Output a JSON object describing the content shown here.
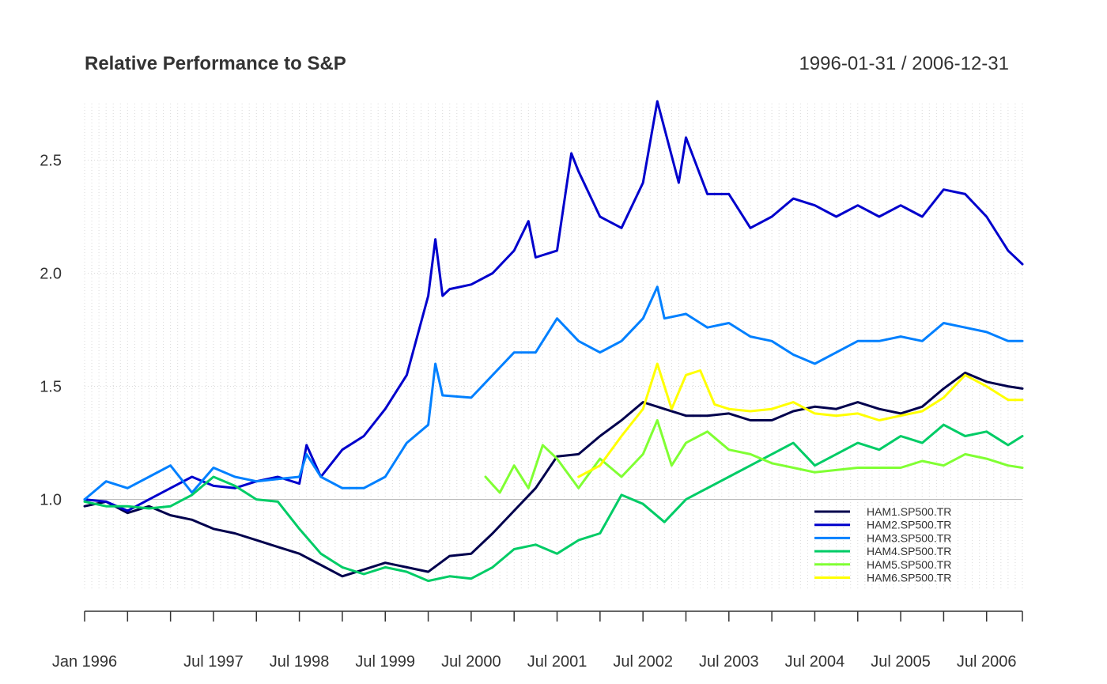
{
  "chart_data": {
    "type": "line",
    "title": "Relative Performance to S&P",
    "date_range": "1996-01-31 / 2006-12-31",
    "ylim": [
      0.6,
      2.75
    ],
    "yticks": [
      1.0,
      1.5,
      2.0,
      2.5
    ],
    "ytick_labels": [
      "1.0",
      "1.5",
      "2.0",
      "2.5"
    ],
    "x_range": [
      "1996-01",
      "2006-12"
    ],
    "xticks": [
      {
        "date": "1996-01",
        "label": "Jan 1996"
      },
      {
        "date": "1997-07",
        "label": "Jul 1997"
      },
      {
        "date": "1998-07",
        "label": "Jul 1998"
      },
      {
        "date": "1999-07",
        "label": "Jul 1999"
      },
      {
        "date": "2000-07",
        "label": "Jul 2000"
      },
      {
        "date": "2001-07",
        "label": "Jul 2001"
      },
      {
        "date": "2002-07",
        "label": "Jul 2002"
      },
      {
        "date": "2003-07",
        "label": "Jul 2003"
      },
      {
        "date": "2004-07",
        "label": "Jul 2004"
      },
      {
        "date": "2005-07",
        "label": "Jul 2005"
      },
      {
        "date": "2006-07",
        "label": "Jul 2006"
      }
    ],
    "reference_line": 1.0,
    "grid": true,
    "legend_position": "bottom-right",
    "series": [
      {
        "name": "HAM1.SP500.TR",
        "color": "#00004d",
        "start": "1996-01",
        "points": [
          [
            "1996-01",
            0.97
          ],
          [
            "1996-04",
            0.99
          ],
          [
            "1996-07",
            0.94
          ],
          [
            "1996-10",
            0.97
          ],
          [
            "1997-01",
            0.93
          ],
          [
            "1997-04",
            0.91
          ],
          [
            "1997-07",
            0.87
          ],
          [
            "1997-10",
            0.85
          ],
          [
            "1998-01",
            0.82
          ],
          [
            "1998-04",
            0.79
          ],
          [
            "1998-07",
            0.76
          ],
          [
            "1998-10",
            0.71
          ],
          [
            "1999-01",
            0.66
          ],
          [
            "1999-04",
            0.69
          ],
          [
            "1999-07",
            0.72
          ],
          [
            "1999-10",
            0.7
          ],
          [
            "2000-01",
            0.68
          ],
          [
            "2000-04",
            0.75
          ],
          [
            "2000-07",
            0.76
          ],
          [
            "2000-10",
            0.85
          ],
          [
            "2001-01",
            0.95
          ],
          [
            "2001-04",
            1.05
          ],
          [
            "2001-07",
            1.19
          ],
          [
            "2001-10",
            1.2
          ],
          [
            "2002-01",
            1.28
          ],
          [
            "2002-04",
            1.35
          ],
          [
            "2002-07",
            1.43
          ],
          [
            "2002-10",
            1.4
          ],
          [
            "2003-01",
            1.37
          ],
          [
            "2003-04",
            1.37
          ],
          [
            "2003-07",
            1.38
          ],
          [
            "2003-10",
            1.35
          ],
          [
            "2004-01",
            1.35
          ],
          [
            "2004-04",
            1.39
          ],
          [
            "2004-07",
            1.41
          ],
          [
            "2004-10",
            1.4
          ],
          [
            "2005-01",
            1.43
          ],
          [
            "2005-04",
            1.4
          ],
          [
            "2005-07",
            1.38
          ],
          [
            "2005-10",
            1.41
          ],
          [
            "2006-01",
            1.49
          ],
          [
            "2006-04",
            1.56
          ],
          [
            "2006-07",
            1.52
          ],
          [
            "2006-10",
            1.5
          ],
          [
            "2006-12",
            1.49
          ]
        ]
      },
      {
        "name": "HAM2.SP500.TR",
        "color": "#0000cc",
        "start": "1996-01",
        "points": [
          [
            "1996-01",
            1.0
          ],
          [
            "1996-04",
            0.99
          ],
          [
            "1996-07",
            0.95
          ],
          [
            "1996-10",
            1.0
          ],
          [
            "1997-01",
            1.05
          ],
          [
            "1997-04",
            1.1
          ],
          [
            "1997-07",
            1.06
          ],
          [
            "1997-10",
            1.05
          ],
          [
            "1998-01",
            1.08
          ],
          [
            "1998-04",
            1.1
          ],
          [
            "1998-07",
            1.07
          ],
          [
            "1998-08",
            1.24
          ],
          [
            "1998-10",
            1.1
          ],
          [
            "1999-01",
            1.22
          ],
          [
            "1999-04",
            1.28
          ],
          [
            "1999-07",
            1.4
          ],
          [
            "1999-10",
            1.55
          ],
          [
            "2000-01",
            1.9
          ],
          [
            "2000-02",
            2.15
          ],
          [
            "2000-03",
            1.9
          ],
          [
            "2000-04",
            1.93
          ],
          [
            "2000-07",
            1.95
          ],
          [
            "2000-10",
            2.0
          ],
          [
            "2001-01",
            2.1
          ],
          [
            "2001-03",
            2.23
          ],
          [
            "2001-04",
            2.07
          ],
          [
            "2001-07",
            2.1
          ],
          [
            "2001-09",
            2.53
          ],
          [
            "2001-10",
            2.45
          ],
          [
            "2002-01",
            2.25
          ],
          [
            "2002-04",
            2.2
          ],
          [
            "2002-07",
            2.4
          ],
          [
            "2002-09",
            2.76
          ],
          [
            "2002-12",
            2.4
          ],
          [
            "2003-01",
            2.6
          ],
          [
            "2003-04",
            2.35
          ],
          [
            "2003-07",
            2.35
          ],
          [
            "2003-10",
            2.2
          ],
          [
            "2004-01",
            2.25
          ],
          [
            "2004-04",
            2.33
          ],
          [
            "2004-07",
            2.3
          ],
          [
            "2004-10",
            2.25
          ],
          [
            "2005-01",
            2.3
          ],
          [
            "2005-04",
            2.25
          ],
          [
            "2005-07",
            2.3
          ],
          [
            "2005-10",
            2.25
          ],
          [
            "2006-01",
            2.37
          ],
          [
            "2006-04",
            2.35
          ],
          [
            "2006-07",
            2.25
          ],
          [
            "2006-10",
            2.1
          ],
          [
            "2006-12",
            2.04
          ]
        ]
      },
      {
        "name": "HAM3.SP500.TR",
        "color": "#0080ff",
        "start": "1996-01",
        "points": [
          [
            "1996-01",
            1.0
          ],
          [
            "1996-04",
            1.08
          ],
          [
            "1996-07",
            1.05
          ],
          [
            "1996-10",
            1.1
          ],
          [
            "1997-01",
            1.15
          ],
          [
            "1997-04",
            1.03
          ],
          [
            "1997-07",
            1.14
          ],
          [
            "1997-10",
            1.1
          ],
          [
            "1998-01",
            1.08
          ],
          [
            "1998-04",
            1.09
          ],
          [
            "1998-07",
            1.1
          ],
          [
            "1998-08",
            1.2
          ],
          [
            "1998-10",
            1.1
          ],
          [
            "1999-01",
            1.05
          ],
          [
            "1999-04",
            1.05
          ],
          [
            "1999-07",
            1.1
          ],
          [
            "1999-10",
            1.25
          ],
          [
            "2000-01",
            1.33
          ],
          [
            "2000-02",
            1.6
          ],
          [
            "2000-03",
            1.46
          ],
          [
            "2000-07",
            1.45
          ],
          [
            "2000-10",
            1.55
          ],
          [
            "2001-01",
            1.65
          ],
          [
            "2001-04",
            1.65
          ],
          [
            "2001-07",
            1.8
          ],
          [
            "2001-10",
            1.7
          ],
          [
            "2002-01",
            1.65
          ],
          [
            "2002-04",
            1.7
          ],
          [
            "2002-07",
            1.8
          ],
          [
            "2002-09",
            1.94
          ],
          [
            "2002-10",
            1.8
          ],
          [
            "2003-01",
            1.82
          ],
          [
            "2003-04",
            1.76
          ],
          [
            "2003-07",
            1.78
          ],
          [
            "2003-10",
            1.72
          ],
          [
            "2004-01",
            1.7
          ],
          [
            "2004-04",
            1.64
          ],
          [
            "2004-07",
            1.6
          ],
          [
            "2004-10",
            1.65
          ],
          [
            "2005-01",
            1.7
          ],
          [
            "2005-04",
            1.7
          ],
          [
            "2005-07",
            1.72
          ],
          [
            "2005-10",
            1.7
          ],
          [
            "2006-01",
            1.78
          ],
          [
            "2006-04",
            1.76
          ],
          [
            "2006-07",
            1.74
          ],
          [
            "2006-10",
            1.7
          ],
          [
            "2006-12",
            1.7
          ]
        ]
      },
      {
        "name": "HAM4.SP500.TR",
        "color": "#00cc66",
        "start": "1996-01",
        "points": [
          [
            "1996-01",
            0.99
          ],
          [
            "1996-04",
            0.97
          ],
          [
            "1996-07",
            0.97
          ],
          [
            "1996-10",
            0.96
          ],
          [
            "1997-01",
            0.97
          ],
          [
            "1997-04",
            1.02
          ],
          [
            "1997-07",
            1.1
          ],
          [
            "1997-10",
            1.06
          ],
          [
            "1998-01",
            1.0
          ],
          [
            "1998-04",
            0.99
          ],
          [
            "1998-07",
            0.87
          ],
          [
            "1998-10",
            0.76
          ],
          [
            "1999-01",
            0.7
          ],
          [
            "1999-04",
            0.67
          ],
          [
            "1999-07",
            0.7
          ],
          [
            "1999-10",
            0.68
          ],
          [
            "2000-01",
            0.64
          ],
          [
            "2000-04",
            0.66
          ],
          [
            "2000-07",
            0.65
          ],
          [
            "2000-10",
            0.7
          ],
          [
            "2001-01",
            0.78
          ],
          [
            "2001-04",
            0.8
          ],
          [
            "2001-07",
            0.76
          ],
          [
            "2001-10",
            0.82
          ],
          [
            "2002-01",
            0.85
          ],
          [
            "2002-04",
            1.02
          ],
          [
            "2002-07",
            0.98
          ],
          [
            "2002-10",
            0.9
          ],
          [
            "2003-01",
            1.0
          ],
          [
            "2003-04",
            1.05
          ],
          [
            "2003-07",
            1.1
          ],
          [
            "2003-10",
            1.15
          ],
          [
            "2004-01",
            1.2
          ],
          [
            "2004-04",
            1.25
          ],
          [
            "2004-07",
            1.15
          ],
          [
            "2004-10",
            1.2
          ],
          [
            "2005-01",
            1.25
          ],
          [
            "2005-04",
            1.22
          ],
          [
            "2005-07",
            1.28
          ],
          [
            "2005-10",
            1.25
          ],
          [
            "2006-01",
            1.33
          ],
          [
            "2006-04",
            1.28
          ],
          [
            "2006-07",
            1.3
          ],
          [
            "2006-10",
            1.24
          ],
          [
            "2006-12",
            1.28
          ]
        ]
      },
      {
        "name": "HAM5.SP500.TR",
        "color": "#80ff33",
        "start": "2000-09",
        "points": [
          [
            "2000-09",
            1.1
          ],
          [
            "2000-11",
            1.03
          ],
          [
            "2001-01",
            1.15
          ],
          [
            "2001-03",
            1.05
          ],
          [
            "2001-05",
            1.24
          ],
          [
            "2001-07",
            1.18
          ],
          [
            "2001-10",
            1.05
          ],
          [
            "2002-01",
            1.18
          ],
          [
            "2002-04",
            1.1
          ],
          [
            "2002-07",
            1.2
          ],
          [
            "2002-09",
            1.35
          ],
          [
            "2002-11",
            1.15
          ],
          [
            "2003-01",
            1.25
          ],
          [
            "2003-04",
            1.3
          ],
          [
            "2003-07",
            1.22
          ],
          [
            "2003-10",
            1.2
          ],
          [
            "2004-01",
            1.16
          ],
          [
            "2004-04",
            1.14
          ],
          [
            "2004-07",
            1.12
          ],
          [
            "2004-10",
            1.13
          ],
          [
            "2005-01",
            1.14
          ],
          [
            "2005-04",
            1.14
          ],
          [
            "2005-07",
            1.14
          ],
          [
            "2005-10",
            1.17
          ],
          [
            "2006-01",
            1.15
          ],
          [
            "2006-04",
            1.2
          ],
          [
            "2006-07",
            1.18
          ],
          [
            "2006-10",
            1.15
          ],
          [
            "2006-12",
            1.14
          ]
        ]
      },
      {
        "name": "HAM6.SP500.TR",
        "color": "#ffff00",
        "start": "2001-10",
        "points": [
          [
            "2001-10",
            1.1
          ],
          [
            "2002-01",
            1.15
          ],
          [
            "2002-04",
            1.28
          ],
          [
            "2002-07",
            1.4
          ],
          [
            "2002-09",
            1.6
          ],
          [
            "2002-11",
            1.4
          ],
          [
            "2003-01",
            1.55
          ],
          [
            "2003-03",
            1.57
          ],
          [
            "2003-05",
            1.42
          ],
          [
            "2003-07",
            1.4
          ],
          [
            "2003-10",
            1.39
          ],
          [
            "2004-01",
            1.4
          ],
          [
            "2004-04",
            1.43
          ],
          [
            "2004-07",
            1.38
          ],
          [
            "2004-10",
            1.37
          ],
          [
            "2005-01",
            1.38
          ],
          [
            "2005-04",
            1.35
          ],
          [
            "2005-07",
            1.37
          ],
          [
            "2005-10",
            1.39
          ],
          [
            "2006-01",
            1.45
          ],
          [
            "2006-04",
            1.55
          ],
          [
            "2006-07",
            1.5
          ],
          [
            "2006-10",
            1.44
          ],
          [
            "2006-12",
            1.44
          ]
        ]
      }
    ]
  }
}
